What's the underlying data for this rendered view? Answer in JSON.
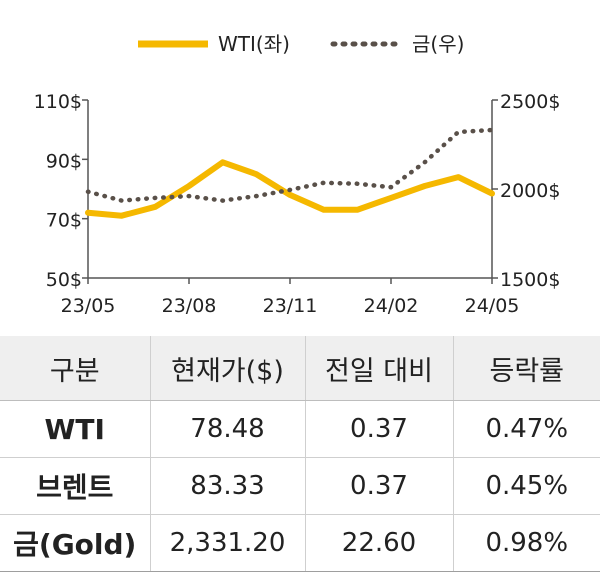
{
  "chart_data": {
    "type": "line",
    "x": [
      "23/05",
      "23/06",
      "23/07",
      "23/08",
      "23/09",
      "23/10",
      "23/11",
      "23/12",
      "24/01",
      "24/02",
      "24/03",
      "24/04",
      "24/05"
    ],
    "x_tick_labels": [
      "23/05",
      "23/08",
      "23/11",
      "24/02",
      "24/05"
    ],
    "series": [
      {
        "name": "WTI(좌)",
        "axis": "left",
        "color": "#f5b800",
        "style": "solid",
        "values": [
          72,
          71,
          74,
          81,
          89,
          85,
          78,
          73,
          73,
          77,
          81,
          84,
          78.48
        ]
      },
      {
        "name": "금(우)",
        "axis": "right",
        "color": "#595049",
        "style": "dotted",
        "values": [
          1985,
          1935,
          1950,
          1960,
          1935,
          1960,
          1995,
          2035,
          2030,
          2010,
          2150,
          2320,
          2331.2
        ]
      }
    ],
    "y_left": {
      "ticks": [
        "110$",
        "90$",
        "70$",
        "50$"
      ],
      "ylim": [
        50,
        110
      ]
    },
    "y_right": {
      "ticks": [
        "2500$",
        "2000$",
        "1500$"
      ],
      "ylim": [
        1500,
        2500
      ]
    },
    "legend": "top-center",
    "grid": false
  },
  "table": {
    "headers": [
      "구분",
      "현재가($)",
      "전일 대비",
      "등락률"
    ],
    "rows": [
      [
        "WTI",
        "78.48",
        "0.37",
        "0.47%"
      ],
      [
        "브렌트",
        "83.33",
        "0.37",
        "0.45%"
      ],
      [
        "금(Gold)",
        "2,331.20",
        "22.60",
        "0.98%"
      ]
    ]
  }
}
